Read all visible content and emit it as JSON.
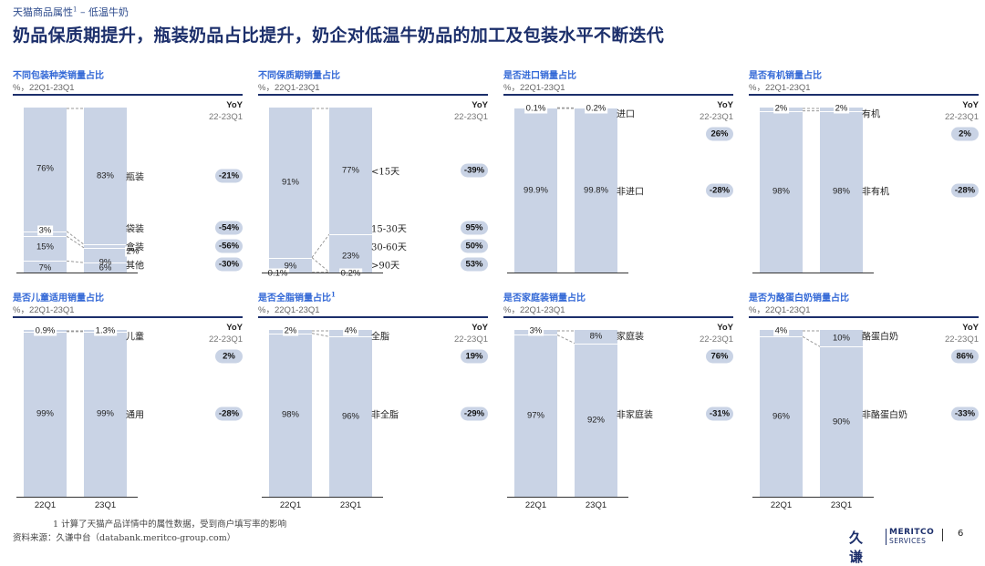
{
  "header": {
    "tag": "天猫商品属性",
    "tag_sup": "1",
    "tag_tail": " – 低温牛奶",
    "title": "奶品保质期提升，瓶装奶品占比提升，奶企对低温牛奶品的加工及包装水平不断迭代"
  },
  "colors": {
    "bar": "#c9d3e5",
    "title": "#1c2f6b",
    "panel_title": "#3167d6",
    "pill": "#c9d3e5"
  },
  "chart_data": [
    {
      "type": "bar",
      "title": "不同包装种类销量占比",
      "subtitle": "%，22Q1-23Q1",
      "yoy_header": "YoY",
      "yoy_sub": "22-23Q1",
      "categories": [
        "22Q1",
        "23Q1"
      ],
      "show_xlabels": false,
      "series": [
        {
          "name": "其他",
          "values": [
            7,
            6
          ],
          "labels": [
            "7%",
            "6%"
          ],
          "yoy": "-30%"
        },
        {
          "name": "盒装",
          "values": [
            15,
            9
          ],
          "labels": [
            "15%",
            "9%"
          ],
          "yoy": "-56%"
        },
        {
          "name": "袋装",
          "values": [
            3,
            2
          ],
          "labels": [
            "3%",
            "2%"
          ],
          "yoy": "-54%"
        },
        {
          "name": "瓶装",
          "values": [
            76,
            83
          ],
          "labels": [
            "76%",
            "83%"
          ],
          "yoy": "-21%"
        }
      ]
    },
    {
      "type": "bar",
      "title": "不同保质期销量占比",
      "subtitle": "%，22Q1-23Q1",
      "yoy_header": "YoY",
      "yoy_sub": "22-23Q1",
      "categories": [
        "22Q1",
        "23Q1"
      ],
      "show_xlabels": false,
      "series": [
        {
          "name": ">90天",
          "values": [
            0.1,
            0.2
          ],
          "labels": [
            "0.1%",
            "0.2%"
          ],
          "yoy": "53%"
        },
        {
          "name": "30-60天",
          "values": [
            9,
            0
          ],
          "labels": [
            "9%",
            ""
          ],
          "yoy": "50%"
        },
        {
          "name": "15-30天",
          "values": [
            0,
            23
          ],
          "labels": [
            "",
            "23%"
          ],
          "yoy": "95%"
        },
        {
          "name": "<15天",
          "values": [
            91,
            77
          ],
          "labels": [
            "91%",
            "77%"
          ],
          "yoy": "-39%"
        }
      ]
    },
    {
      "type": "bar",
      "title": "是否进口销量占比",
      "subtitle": "%，22Q1-23Q1",
      "yoy_header": "YoY",
      "yoy_sub": "22-23Q1",
      "categories": [
        "22Q1",
        "23Q1"
      ],
      "show_xlabels": false,
      "series": [
        {
          "name": "非进口",
          "values": [
            99.9,
            99.8
          ],
          "labels": [
            "99.9%",
            "99.8%"
          ],
          "yoy": "-28%"
        },
        {
          "name": "进口",
          "values": [
            0.1,
            0.2
          ],
          "labels": [
            "0.1%",
            "0.2%"
          ],
          "yoy": "26%"
        }
      ]
    },
    {
      "type": "bar",
      "title": "是否有机销量占比",
      "subtitle": "%，22Q1-23Q1",
      "yoy_header": "YoY",
      "yoy_sub": "22-23Q1",
      "categories": [
        "22Q1",
        "23Q1"
      ],
      "show_xlabels": false,
      "series": [
        {
          "name": "非有机",
          "values": [
            98,
            98
          ],
          "labels": [
            "98%",
            "98%"
          ],
          "yoy": "-28%"
        },
        {
          "name": "有机",
          "values": [
            2,
            2
          ],
          "labels": [
            "2%",
            "2%"
          ],
          "yoy": "2%"
        }
      ]
    },
    {
      "type": "bar",
      "title": "是否儿童适用销量占比",
      "subtitle": "%，22Q1-23Q1",
      "yoy_header": "YoY",
      "yoy_sub": "22-23Q1",
      "categories": [
        "22Q1",
        "23Q1"
      ],
      "show_xlabels": true,
      "series": [
        {
          "name": "通用",
          "values": [
            99,
            99
          ],
          "labels": [
            "99%",
            "99%"
          ],
          "yoy": "-28%"
        },
        {
          "name": "儿童",
          "values": [
            0.9,
            1.3
          ],
          "labels": [
            "0.9%",
            "1.3%"
          ],
          "yoy": "2%"
        }
      ]
    },
    {
      "type": "bar",
      "title": "是否全脂销量占比",
      "title_sup": "1",
      "subtitle": "%，22Q1-23Q1",
      "yoy_header": "YoY",
      "yoy_sub": "22-23Q1",
      "categories": [
        "22Q1",
        "23Q1"
      ],
      "show_xlabels": true,
      "series": [
        {
          "name": "非全脂",
          "values": [
            98,
            96
          ],
          "labels": [
            "98%",
            "96%"
          ],
          "yoy": "-29%"
        },
        {
          "name": "全脂",
          "values": [
            2,
            4
          ],
          "labels": [
            "2%",
            "4%"
          ],
          "yoy": "19%"
        }
      ]
    },
    {
      "type": "bar",
      "title": "是否家庭装销量占比",
      "subtitle": "%，22Q1-23Q1",
      "yoy_header": "YoY",
      "yoy_sub": "22-23Q1",
      "categories": [
        "22Q1",
        "23Q1"
      ],
      "show_xlabels": true,
      "series": [
        {
          "name": "非家庭装",
          "values": [
            97,
            92
          ],
          "labels": [
            "97%",
            "92%"
          ],
          "yoy": "-31%"
        },
        {
          "name": "家庭装",
          "values": [
            3,
            8
          ],
          "labels": [
            "3%",
            "8%"
          ],
          "yoy": "76%"
        }
      ]
    },
    {
      "type": "bar",
      "title": "是否为酪蛋白奶销量占比",
      "subtitle": "%，22Q1-23Q1",
      "yoy_header": "YoY",
      "yoy_sub": "22-23Q1",
      "categories": [
        "22Q1",
        "23Q1"
      ],
      "show_xlabels": true,
      "series": [
        {
          "name": "非酪蛋白奶",
          "values": [
            96,
            90
          ],
          "labels": [
            "96%",
            "90%"
          ],
          "yoy": "-33%"
        },
        {
          "name": "酪蛋白奶",
          "values": [
            4,
            10
          ],
          "labels": [
            "4%",
            "10%"
          ],
          "yoy": "86%"
        }
      ]
    }
  ],
  "footer": {
    "footnote": "1  计算了天猫产品详情中的属性数据，受到商户填写率的影响",
    "source": "资料来源：久谦中台（databank.meritco-group.com）",
    "logo_cn": "久谦",
    "logo_en1": "MERITCO",
    "logo_en2": "SERVICES",
    "page": "6"
  }
}
